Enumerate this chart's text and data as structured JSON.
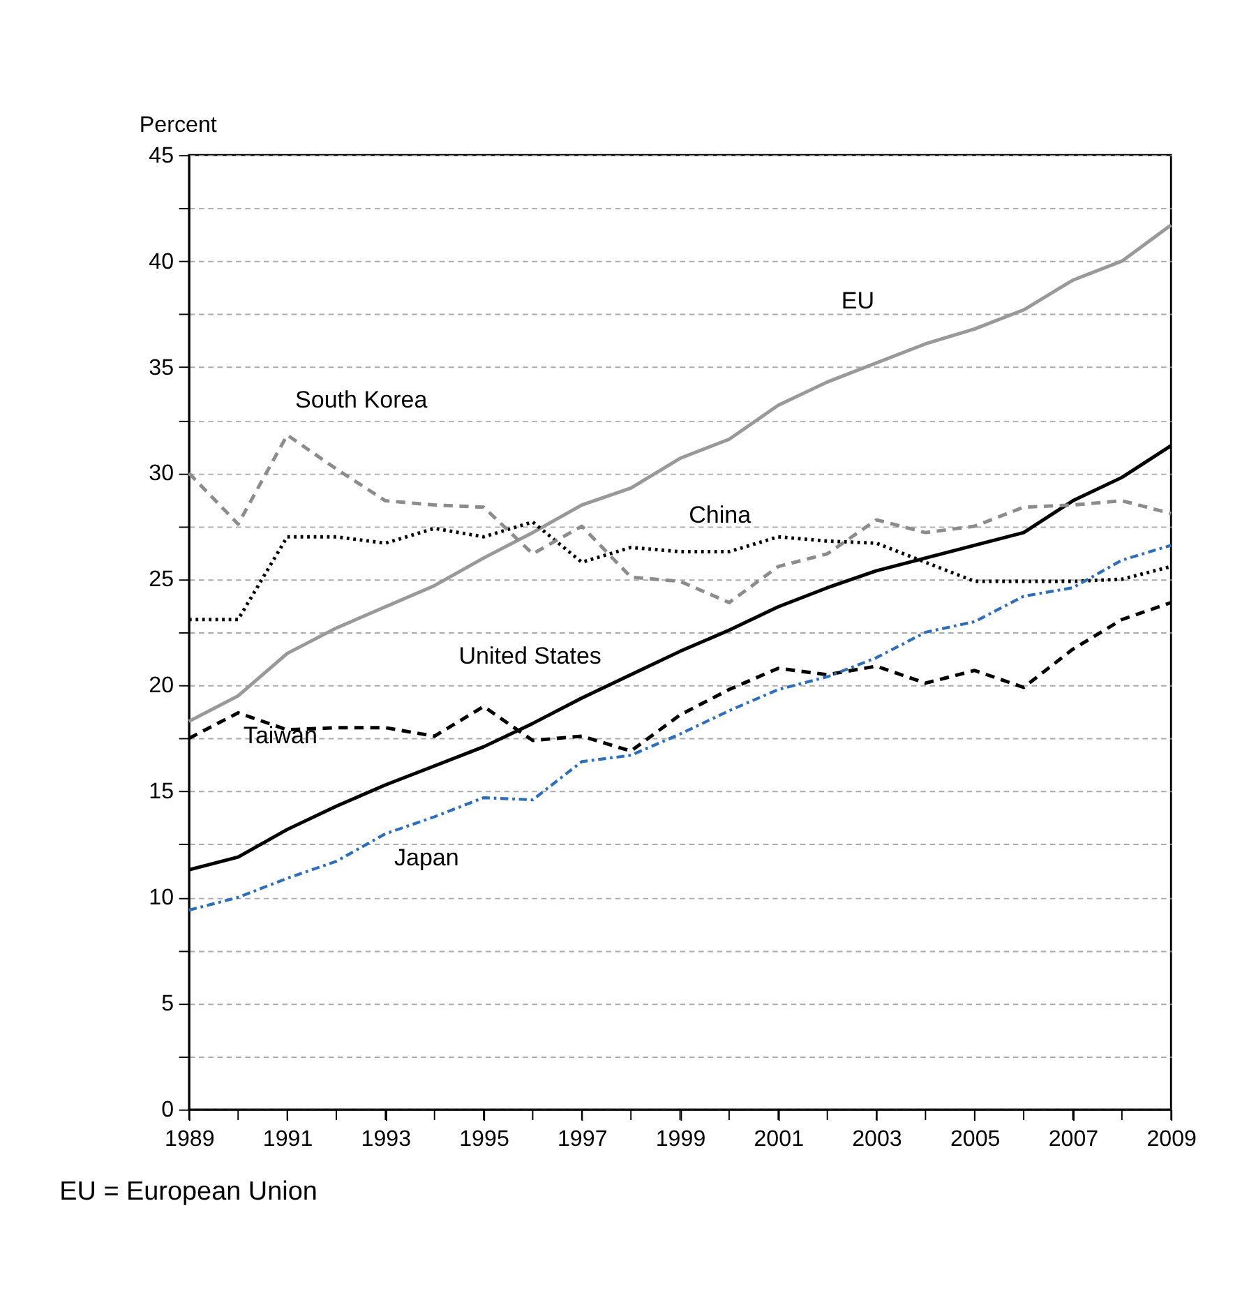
{
  "chart_data": {
    "type": "line",
    "ylabel": "Percent",
    "annotations": [
      "EU = European Union"
    ],
    "x": [
      1989,
      1990,
      1991,
      1992,
      1993,
      1994,
      1995,
      1996,
      1997,
      1998,
      1999,
      2000,
      2001,
      2002,
      2003,
      2004,
      2005,
      2006,
      2007,
      2008,
      2009
    ],
    "series": [
      {
        "name": "EU",
        "color": "#999999",
        "line_style": "solid",
        "values": [
          18.3,
          19.5,
          21.5,
          22.7,
          23.7,
          24.7,
          26.0,
          27.2,
          28.5,
          29.3,
          30.7,
          31.6,
          33.2,
          34.3,
          35.2,
          36.1,
          36.8,
          37.7,
          39.1,
          40.0,
          41.7
        ]
      },
      {
        "name": "United States",
        "color": "#000000",
        "line_style": "solid",
        "values": [
          11.3,
          11.9,
          13.2,
          14.3,
          15.3,
          16.2,
          17.1,
          18.2,
          19.4,
          20.5,
          21.6,
          22.6,
          23.7,
          24.6,
          25.4,
          26.0,
          26.6,
          27.2,
          28.7,
          29.8,
          31.3
        ]
      },
      {
        "name": "China",
        "color": "#000000",
        "line_style": "dotted",
        "values": [
          23.1,
          23.1,
          27.0,
          27.0,
          26.7,
          27.4,
          27.0,
          27.7,
          25.8,
          26.5,
          26.3,
          26.3,
          27.0,
          26.8,
          26.7,
          25.8,
          24.9,
          24.9,
          24.9,
          25.0,
          25.6
        ]
      },
      {
        "name": "South Korea",
        "color": "#8c8c8c",
        "line_style": "dashed",
        "values": [
          30.0,
          27.6,
          31.8,
          30.2,
          28.7,
          28.5,
          28.4,
          26.2,
          27.5,
          25.1,
          24.9,
          23.9,
          25.6,
          26.2,
          27.8,
          27.2,
          27.5,
          28.4,
          28.5,
          28.7,
          28.1
        ]
      },
      {
        "name": "Taiwan",
        "color": "#000000",
        "line_style": "dashed",
        "values": [
          17.5,
          18.7,
          17.9,
          18.0,
          18.0,
          17.6,
          19.0,
          17.4,
          17.6,
          16.9,
          18.6,
          19.8,
          20.8,
          20.5,
          20.9,
          20.1,
          20.7,
          19.9,
          21.7,
          23.1,
          23.9
        ]
      },
      {
        "name": "Japan",
        "color": "#2e6fb7",
        "line_style": "dashdot",
        "values": [
          9.4,
          10.0,
          10.9,
          11.7,
          13.0,
          13.8,
          14.7,
          14.6,
          16.4,
          16.7,
          17.7,
          18.8,
          19.8,
          20.4,
          21.3,
          22.5,
          23.0,
          24.2,
          24.6,
          25.9,
          26.6
        ]
      }
    ],
    "xlim": [
      1989,
      2009
    ],
    "xticks": [
      1989,
      {
        "value": 1990,
        "label": null
      },
      1991,
      {
        "value": 1992,
        "label": null
      },
      1993,
      {
        "value": 1994,
        "label": null
      },
      1995,
      {
        "value": 1996,
        "label": null
      },
      1997,
      {
        "value": 1998,
        "label": null
      },
      1999,
      {
        "value": 2000,
        "label": null
      },
      2001,
      {
        "value": 2002,
        "label": null
      },
      2003,
      {
        "value": 2004,
        "label": null
      },
      2005,
      {
        "value": 2006,
        "label": null
      },
      2007,
      {
        "value": 2008,
        "label": null
      },
      2009
    ],
    "ylim": [
      0,
      45
    ],
    "yticks": [
      0,
      {
        "value": 2.5,
        "label": null
      },
      5,
      {
        "value": 7.5,
        "label": null
      },
      10,
      {
        "value": 12.5,
        "label": null
      },
      15,
      {
        "value": 17.5,
        "label": null
      },
      20,
      {
        "value": 22.5,
        "label": null
      },
      25,
      {
        "value": 27.5,
        "label": null
      },
      30,
      {
        "value": 32.5,
        "label": null
      },
      35,
      {
        "value": 37.5,
        "label": null
      },
      40,
      {
        "value": 42.5,
        "label": null
      },
      45
    ],
    "grid": "y",
    "marker": "none"
  }
}
